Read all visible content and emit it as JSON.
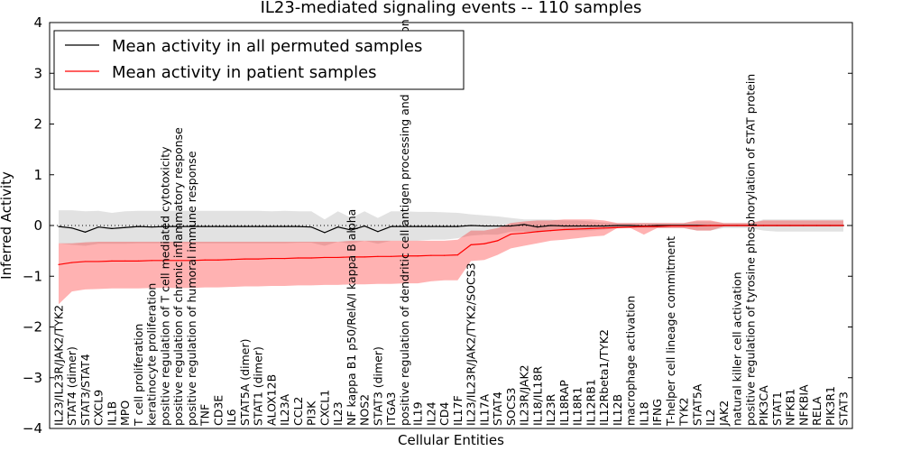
{
  "chart_data": {
    "type": "line",
    "title": "IL23-mediated signaling events -- 110 samples",
    "xlabel": "Cellular Entities",
    "ylabel": "Inferred Activity",
    "ylim": [
      -4,
      4
    ],
    "yticks": [
      -4,
      -3,
      -2,
      -1,
      0,
      1,
      2,
      3,
      4
    ],
    "ytick_labels": [
      "−4",
      "−3",
      "−2",
      "−1",
      "0",
      "1",
      "2",
      "3",
      "4"
    ],
    "grid": false,
    "zero_line": "dotted",
    "legend_position": "top-left",
    "categories": [
      "IL23/IL23R/JAK2/TYK2",
      "STAT4 (dimer)",
      "STAT3/STAT4",
      "CXCL9",
      "IL1B",
      "MPO",
      "T cell proliferation",
      "keratinocyte proliferation",
      "positive regulation of T cell mediated cytotoxicity",
      "positive regulation of chronic inflammatory response",
      "positive regulation of humoral immune response",
      "TNF",
      "CD3E",
      "IL6",
      "STAT5A (dimer)",
      "STAT1 (dimer)",
      "ALOX12B",
      "IL23A",
      "CCL2",
      "PI3K",
      "CXCL1",
      "IL23",
      "NF kappa B1 p50/RelA/I kappa B alpha",
      "NOS2",
      "STAT3 (dimer)",
      "ITGA3",
      "positive regulation of dendritic cell antigen processing and presentation",
      "IL19",
      "IL24",
      "CD4",
      "IL17F",
      "IL23/IL23R/JAK2/TYK2/SOCS3",
      "IL17A",
      "STAT4",
      "SOCS3",
      "IL23R/JAK2",
      "IL18/IL18R",
      "IL23R",
      "IL18RAP",
      "IL18R1",
      "IL12RB1",
      "IL12Rbeta1/TYK2",
      "IL12B",
      "macrophage activation",
      "IL18",
      "IFNG",
      "T-helper cell lineage commitment",
      "TYK2",
      "STAT5A",
      "IL2",
      "JAK2",
      "natural killer cell activation",
      "positive regulation of tyrosine phosphorylation of STAT protein",
      "PIK3CA",
      "STAT1",
      "NFKB1",
      "NFKBIA",
      "RELA",
      "PIK3R1",
      "STAT3"
    ],
    "series": [
      {
        "name": "Mean activity in all permuted samples",
        "color": "#000000",
        "values": [
          -0.02,
          -0.05,
          -0.13,
          -0.03,
          -0.06,
          -0.04,
          -0.02,
          -0.03,
          -0.02,
          -0.02,
          -0.02,
          -0.02,
          -0.02,
          -0.02,
          -0.02,
          -0.02,
          -0.02,
          -0.02,
          -0.02,
          -0.03,
          -0.14,
          -0.03,
          -0.09,
          -0.01,
          -0.12,
          -0.02,
          -0.02,
          -0.02,
          -0.02,
          -0.02,
          -0.02,
          0.0,
          -0.01,
          -0.01,
          -0.01,
          0.02,
          -0.03,
          0.0,
          -0.01,
          -0.01,
          -0.01,
          -0.01,
          0.0,
          0.0,
          -0.01,
          0.0,
          0.0,
          0.0,
          0.0,
          0.0,
          0.0,
          0.0,
          0.0,
          0.0,
          0.0,
          0.0,
          0.0,
          0.0,
          0.0,
          0.0
        ],
        "band_lower": [
          -0.35,
          -0.38,
          -0.4,
          -0.36,
          -0.36,
          -0.36,
          -0.35,
          -0.35,
          -0.35,
          -0.35,
          -0.35,
          -0.35,
          -0.35,
          -0.35,
          -0.35,
          -0.35,
          -0.35,
          -0.35,
          -0.34,
          -0.34,
          -0.4,
          -0.32,
          -0.36,
          -0.3,
          -0.36,
          -0.3,
          -0.3,
          -0.3,
          -0.28,
          -0.28,
          -0.25,
          -0.2,
          -0.18,
          -0.18,
          -0.12,
          -0.12,
          -0.14,
          -0.1,
          -0.1,
          -0.1,
          -0.1,
          -0.08,
          -0.05,
          -0.05,
          -0.05,
          -0.05,
          -0.05,
          -0.05,
          -0.1,
          -0.1,
          -0.05,
          -0.05,
          -0.05,
          -0.1,
          -0.12,
          -0.12,
          -0.12,
          -0.12,
          -0.12,
          -0.12
        ],
        "band_upper": [
          0.3,
          0.3,
          0.28,
          0.29,
          0.25,
          0.28,
          0.29,
          0.29,
          0.29,
          0.29,
          0.29,
          0.29,
          0.29,
          0.29,
          0.29,
          0.29,
          0.28,
          0.29,
          0.28,
          0.28,
          0.12,
          0.28,
          0.15,
          0.28,
          0.15,
          0.28,
          0.28,
          0.27,
          0.27,
          0.26,
          0.25,
          0.22,
          0.2,
          0.18,
          0.15,
          0.12,
          0.12,
          0.12,
          0.1,
          0.1,
          0.08,
          0.06,
          0.05,
          0.05,
          0.05,
          0.05,
          0.05,
          0.05,
          0.08,
          0.08,
          0.05,
          0.05,
          0.05,
          0.12,
          0.12,
          0.12,
          0.12,
          0.12,
          0.12,
          0.12
        ]
      },
      {
        "name": "Mean activity in patient samples",
        "color": "#ff0000",
        "values": [
          -0.77,
          -0.73,
          -0.71,
          -0.71,
          -0.7,
          -0.7,
          -0.7,
          -0.69,
          -0.69,
          -0.69,
          -0.69,
          -0.68,
          -0.68,
          -0.67,
          -0.66,
          -0.66,
          -0.65,
          -0.65,
          -0.64,
          -0.64,
          -0.63,
          -0.63,
          -0.62,
          -0.62,
          -0.61,
          -0.61,
          -0.6,
          -0.6,
          -0.59,
          -0.59,
          -0.58,
          -0.38,
          -0.36,
          -0.3,
          -0.17,
          -0.15,
          -0.12,
          -0.1,
          -0.08,
          -0.07,
          -0.06,
          -0.05,
          -0.04,
          -0.03,
          -0.02,
          -0.02,
          -0.01,
          -0.01,
          -0.01,
          0.0,
          0.0,
          0.0,
          0.0,
          0.0,
          0.0,
          0.0,
          0.0,
          0.0,
          0.0,
          0.0
        ],
        "band_lower": [
          -1.55,
          -1.3,
          -1.26,
          -1.25,
          -1.24,
          -1.24,
          -1.24,
          -1.23,
          -1.23,
          -1.23,
          -1.23,
          -1.22,
          -1.22,
          -1.21,
          -1.2,
          -1.2,
          -1.19,
          -1.19,
          -1.18,
          -1.18,
          -1.17,
          -1.17,
          -1.16,
          -1.16,
          -1.15,
          -1.15,
          -1.14,
          -1.14,
          -1.1,
          -1.08,
          -1.08,
          -0.7,
          -0.68,
          -0.58,
          -0.45,
          -0.4,
          -0.35,
          -0.3,
          -0.28,
          -0.25,
          -0.22,
          -0.2,
          -0.05,
          -0.05,
          -0.18,
          -0.05,
          -0.05,
          -0.05,
          -0.1,
          -0.1,
          -0.02,
          -0.02,
          -0.02,
          -0.02,
          -0.02,
          -0.02,
          -0.02,
          -0.02,
          -0.02,
          -0.02
        ],
        "band_upper": [
          -0.35,
          -0.35,
          -0.33,
          -0.32,
          -0.32,
          -0.32,
          -0.32,
          -0.32,
          -0.32,
          -0.32,
          -0.32,
          -0.32,
          -0.32,
          -0.32,
          -0.32,
          -0.32,
          -0.32,
          -0.32,
          -0.32,
          -0.32,
          -0.32,
          -0.32,
          -0.3,
          -0.3,
          -0.3,
          -0.3,
          -0.3,
          -0.3,
          -0.3,
          -0.3,
          -0.28,
          -0.1,
          -0.1,
          -0.05,
          0.05,
          0.08,
          0.1,
          0.1,
          0.12,
          0.12,
          0.12,
          0.1,
          0.05,
          0.05,
          0.05,
          0.05,
          0.05,
          0.05,
          0.1,
          0.1,
          0.05,
          0.05,
          0.05,
          0.1,
          0.1,
          0.1,
          0.1,
          0.1,
          0.1,
          0.1
        ]
      }
    ]
  }
}
